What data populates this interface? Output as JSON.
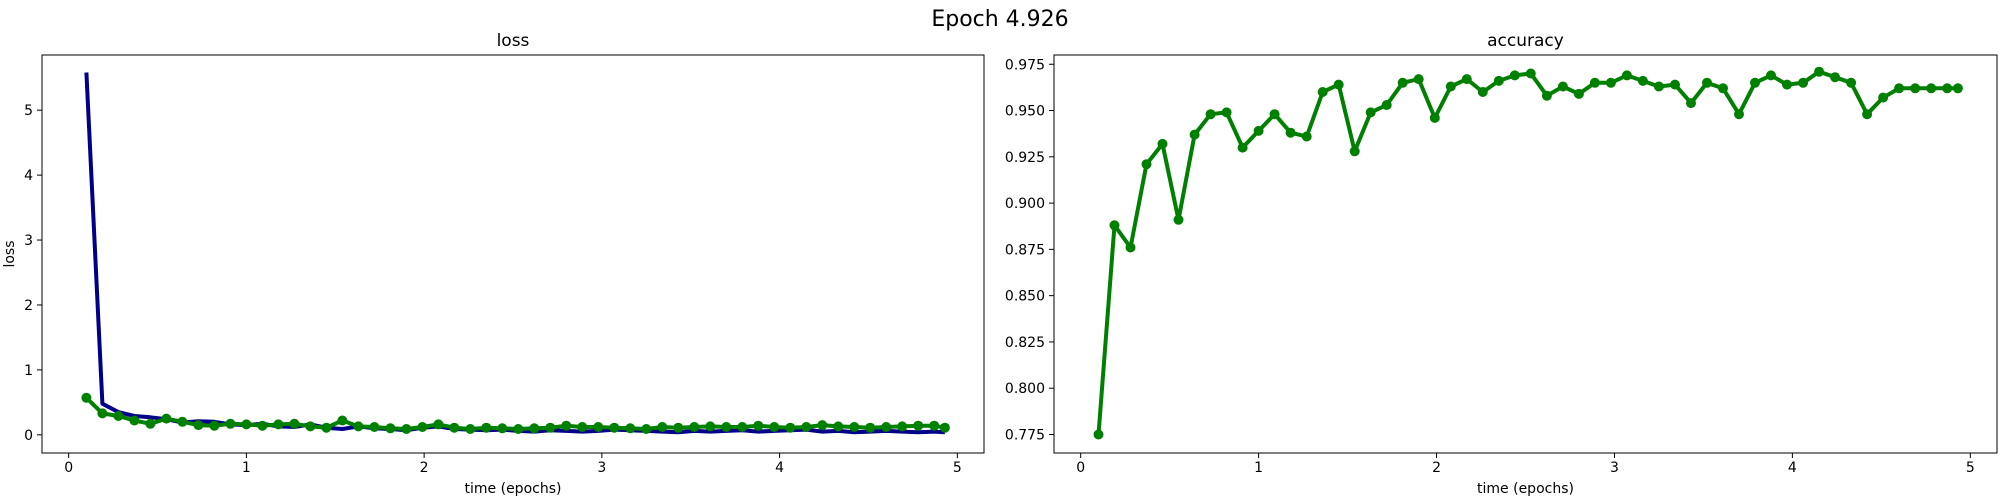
{
  "figure": {
    "title": "Epoch 4.926"
  },
  "chart_data": [
    {
      "type": "line",
      "title": "loss",
      "xlabel": "time (epochs)",
      "ylabel": "loss",
      "xlim": [
        -0.15,
        5.15
      ],
      "ylim": [
        -0.28,
        5.85
      ],
      "xticks": [
        0,
        1,
        2,
        3,
        4,
        5
      ],
      "yticks": [
        0,
        1,
        2,
        3,
        4,
        5
      ],
      "grid": false,
      "series": [
        {
          "color": "#00008b",
          "markers": false,
          "x": [
            0.1,
            0.19,
            0.28,
            0.37,
            0.46,
            0.55,
            0.64,
            0.73,
            0.82,
            0.91,
            1.0,
            1.09,
            1.18,
            1.27,
            1.36,
            1.45,
            1.54,
            1.63,
            1.72,
            1.81,
            1.9,
            1.99,
            2.08,
            2.17,
            2.26,
            2.35,
            2.44,
            2.53,
            2.62,
            2.71,
            2.8,
            2.89,
            2.98,
            3.07,
            3.16,
            3.25,
            3.34,
            3.43,
            3.52,
            3.61,
            3.7,
            3.79,
            3.88,
            3.97,
            4.06,
            4.15,
            4.24,
            4.33,
            4.42,
            4.51,
            4.6,
            4.69,
            4.78,
            4.87,
            4.93
          ],
          "y": [
            5.58,
            0.48,
            0.35,
            0.29,
            0.27,
            0.24,
            0.19,
            0.21,
            0.2,
            0.16,
            0.15,
            0.17,
            0.13,
            0.12,
            0.16,
            0.11,
            0.09,
            0.13,
            0.1,
            0.09,
            0.07,
            0.11,
            0.13,
            0.09,
            0.08,
            0.07,
            0.08,
            0.06,
            0.05,
            0.07,
            0.06,
            0.05,
            0.06,
            0.08,
            0.07,
            0.06,
            0.05,
            0.04,
            0.06,
            0.05,
            0.06,
            0.07,
            0.05,
            0.06,
            0.07,
            0.08,
            0.05,
            0.06,
            0.04,
            0.05,
            0.06,
            0.05,
            0.04,
            0.05,
            0.04
          ]
        },
        {
          "color": "#008000",
          "markers": true,
          "x": [
            0.1,
            0.19,
            0.28,
            0.37,
            0.46,
            0.55,
            0.64,
            0.73,
            0.82,
            0.91,
            1.0,
            1.09,
            1.18,
            1.27,
            1.36,
            1.45,
            1.54,
            1.63,
            1.72,
            1.81,
            1.9,
            1.99,
            2.08,
            2.17,
            2.26,
            2.35,
            2.44,
            2.53,
            2.62,
            2.71,
            2.8,
            2.89,
            2.98,
            3.07,
            3.16,
            3.25,
            3.34,
            3.43,
            3.52,
            3.61,
            3.7,
            3.79,
            3.88,
            3.97,
            4.06,
            4.15,
            4.24,
            4.33,
            4.42,
            4.51,
            4.6,
            4.69,
            4.78,
            4.87,
            4.93
          ],
          "y": [
            0.57,
            0.33,
            0.29,
            0.22,
            0.17,
            0.25,
            0.2,
            0.15,
            0.14,
            0.17,
            0.16,
            0.14,
            0.16,
            0.17,
            0.13,
            0.11,
            0.22,
            0.13,
            0.12,
            0.1,
            0.09,
            0.12,
            0.16,
            0.11,
            0.09,
            0.11,
            0.1,
            0.09,
            0.1,
            0.11,
            0.14,
            0.12,
            0.12,
            0.11,
            0.1,
            0.09,
            0.12,
            0.11,
            0.12,
            0.13,
            0.12,
            0.12,
            0.14,
            0.12,
            0.11,
            0.12,
            0.15,
            0.13,
            0.12,
            0.11,
            0.12,
            0.13,
            0.14,
            0.14,
            0.11
          ]
        }
      ]
    },
    {
      "type": "line",
      "title": "accuracy",
      "xlabel": "time (epochs)",
      "ylabel": "",
      "xlim": [
        -0.15,
        5.15
      ],
      "ylim": [
        0.765,
        0.98
      ],
      "xticks": [
        0,
        1,
        2,
        3,
        4,
        5
      ],
      "yticks": [
        0.775,
        0.8,
        0.825,
        0.85,
        0.875,
        0.9,
        0.925,
        0.95,
        0.975
      ],
      "ytick_labels": [
        "0.775",
        "0.800",
        "0.825",
        "0.850",
        "0.875",
        "0.900",
        "0.925",
        "0.950",
        "0.975"
      ],
      "grid": false,
      "series": [
        {
          "color": "#008000",
          "markers": true,
          "x": [
            0.1,
            0.19,
            0.28,
            0.37,
            0.46,
            0.55,
            0.64,
            0.73,
            0.82,
            0.91,
            1.0,
            1.09,
            1.18,
            1.27,
            1.36,
            1.45,
            1.54,
            1.63,
            1.72,
            1.81,
            1.9,
            1.99,
            2.08,
            2.17,
            2.26,
            2.35,
            2.44,
            2.53,
            2.62,
            2.71,
            2.8,
            2.89,
            2.98,
            3.07,
            3.16,
            3.25,
            3.34,
            3.43,
            3.52,
            3.61,
            3.7,
            3.79,
            3.88,
            3.97,
            4.06,
            4.15,
            4.24,
            4.33,
            4.42,
            4.51,
            4.6,
            4.69,
            4.78,
            4.87,
            4.93
          ],
          "y": [
            0.775,
            0.888,
            0.876,
            0.921,
            0.932,
            0.891,
            0.937,
            0.948,
            0.949,
            0.93,
            0.939,
            0.948,
            0.938,
            0.936,
            0.96,
            0.964,
            0.928,
            0.949,
            0.953,
            0.965,
            0.967,
            0.946,
            0.963,
            0.967,
            0.96,
            0.966,
            0.969,
            0.97,
            0.958,
            0.963,
            0.959,
            0.965,
            0.965,
            0.969,
            0.966,
            0.963,
            0.964,
            0.954,
            0.965,
            0.962,
            0.948,
            0.965,
            0.969,
            0.964,
            0.965,
            0.971,
            0.968,
            0.965,
            0.948,
            0.957,
            0.962,
            0.962,
            0.962,
            0.962,
            0.962
          ]
        }
      ]
    }
  ]
}
